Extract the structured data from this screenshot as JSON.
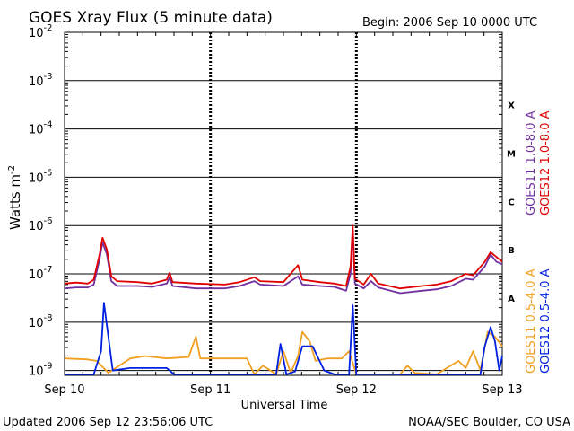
{
  "chart_data": {
    "type": "line",
    "title": "GOES Xray Flux (5 minute data)",
    "begin_label": "Begin:  2006 Sep 10 0000 UTC",
    "xlabel": "Universal Time",
    "ylabel": "Watts m",
    "ylabel_sup": "-2",
    "x_ticks": [
      "Sep 10",
      "Sep 11",
      "Sep 12",
      "Sep 13"
    ],
    "x_range_days": [
      0,
      3
    ],
    "y_scale": "log",
    "y_ticks": [
      {
        "base": "10",
        "exp": "-2"
      },
      {
        "base": "10",
        "exp": "-3"
      },
      {
        "base": "10",
        "exp": "-4"
      },
      {
        "base": "10",
        "exp": "-5"
      },
      {
        "base": "10",
        "exp": "-6"
      },
      {
        "base": "10",
        "exp": "-7"
      },
      {
        "base": "10",
        "exp": "-8"
      },
      {
        "base": "10",
        "exp": "-9"
      }
    ],
    "ylim_exp": [
      -9.1,
      -2
    ],
    "flare_classes": [
      {
        "label": "X",
        "exp": -3.5
      },
      {
        "label": "M",
        "exp": -4.5
      },
      {
        "label": "C",
        "exp": -5.5
      },
      {
        "label": "B",
        "exp": -6.5
      },
      {
        "label": "A",
        "exp": -7.5
      }
    ],
    "series": [
      {
        "name": "GOES11 1.0-8.0 A",
        "color": "#7030a0",
        "unit_days": true,
        "points": [
          [
            0,
            -7.3
          ],
          [
            0.08,
            -7.28
          ],
          [
            0.16,
            -7.28
          ],
          [
            0.2,
            -7.22
          ],
          [
            0.24,
            -6.7
          ],
          [
            0.26,
            -6.35
          ],
          [
            0.29,
            -6.6
          ],
          [
            0.32,
            -7.15
          ],
          [
            0.36,
            -7.25
          ],
          [
            0.5,
            -7.25
          ],
          [
            0.6,
            -7.27
          ],
          [
            0.7,
            -7.2
          ],
          [
            0.72,
            -7.08
          ],
          [
            0.74,
            -7.25
          ],
          [
            0.9,
            -7.3
          ],
          [
            1.1,
            -7.3
          ],
          [
            1.2,
            -7.25
          ],
          [
            1.3,
            -7.15
          ],
          [
            1.34,
            -7.22
          ],
          [
            1.5,
            -7.25
          ],
          [
            1.6,
            -7.05
          ],
          [
            1.63,
            -7.22
          ],
          [
            1.75,
            -7.25
          ],
          [
            1.85,
            -7.27
          ],
          [
            1.93,
            -7.35
          ],
          [
            1.96,
            -7.0
          ],
          [
            1.975,
            -6.1
          ],
          [
            1.99,
            -7.2
          ],
          [
            2.05,
            -7.3
          ],
          [
            2.1,
            -7.15
          ],
          [
            2.15,
            -7.28
          ],
          [
            2.3,
            -7.4
          ],
          [
            2.45,
            -7.35
          ],
          [
            2.55,
            -7.32
          ],
          [
            2.65,
            -7.25
          ],
          [
            2.75,
            -7.1
          ],
          [
            2.8,
            -7.12
          ],
          [
            2.88,
            -6.85
          ],
          [
            2.92,
            -6.6
          ],
          [
            2.96,
            -6.75
          ],
          [
            3.0,
            -6.8
          ]
        ]
      },
      {
        "name": "GOES12 1.0-8.0 A",
        "color": "#e00000",
        "unit_days": true,
        "points": [
          [
            0,
            -7.2
          ],
          [
            0.08,
            -7.18
          ],
          [
            0.16,
            -7.2
          ],
          [
            0.2,
            -7.12
          ],
          [
            0.24,
            -6.6
          ],
          [
            0.26,
            -6.25
          ],
          [
            0.29,
            -6.5
          ],
          [
            0.32,
            -7.05
          ],
          [
            0.36,
            -7.15
          ],
          [
            0.5,
            -7.17
          ],
          [
            0.6,
            -7.2
          ],
          [
            0.7,
            -7.12
          ],
          [
            0.72,
            -6.98
          ],
          [
            0.74,
            -7.17
          ],
          [
            0.9,
            -7.2
          ],
          [
            1.1,
            -7.22
          ],
          [
            1.2,
            -7.17
          ],
          [
            1.3,
            -7.07
          ],
          [
            1.34,
            -7.15
          ],
          [
            1.5,
            -7.17
          ],
          [
            1.6,
            -6.82
          ],
          [
            1.63,
            -7.12
          ],
          [
            1.75,
            -7.17
          ],
          [
            1.85,
            -7.2
          ],
          [
            1.93,
            -7.25
          ],
          [
            1.96,
            -6.85
          ],
          [
            1.975,
            -6.0
          ],
          [
            1.99,
            -7.1
          ],
          [
            2.05,
            -7.22
          ],
          [
            2.1,
            -7.0
          ],
          [
            2.15,
            -7.2
          ],
          [
            2.3,
            -7.3
          ],
          [
            2.45,
            -7.25
          ],
          [
            2.55,
            -7.22
          ],
          [
            2.65,
            -7.15
          ],
          [
            2.75,
            -7.0
          ],
          [
            2.8,
            -7.03
          ],
          [
            2.88,
            -6.75
          ],
          [
            2.92,
            -6.55
          ],
          [
            2.96,
            -6.65
          ],
          [
            3.0,
            -6.75
          ]
        ]
      },
      {
        "name": "GOES11 0.5-4.0 A",
        "color": "#f0a020",
        "unit_days": true,
        "points": [
          [
            0,
            -8.75
          ],
          [
            0.15,
            -8.77
          ],
          [
            0.22,
            -8.8
          ],
          [
            0.3,
            -9.05
          ],
          [
            0.45,
            -8.75
          ],
          [
            0.55,
            -8.7
          ],
          [
            0.7,
            -8.75
          ],
          [
            0.85,
            -8.72
          ],
          [
            0.9,
            -8.3
          ],
          [
            0.93,
            -8.75
          ],
          [
            1.1,
            -8.75
          ],
          [
            1.25,
            -8.75
          ],
          [
            1.3,
            -9.08
          ],
          [
            1.36,
            -8.9
          ],
          [
            1.45,
            -9.08
          ],
          [
            1.5,
            -8.6
          ],
          [
            1.55,
            -9.05
          ],
          [
            1.6,
            -8.7
          ],
          [
            1.63,
            -8.2
          ],
          [
            1.68,
            -8.4
          ],
          [
            1.72,
            -8.8
          ],
          [
            1.8,
            -8.75
          ],
          [
            1.9,
            -8.75
          ],
          [
            1.95,
            -8.6
          ],
          [
            2.0,
            -9.08
          ],
          [
            2.3,
            -9.08
          ],
          [
            2.35,
            -8.9
          ],
          [
            2.4,
            -9.05
          ],
          [
            2.55,
            -9.08
          ],
          [
            2.7,
            -8.8
          ],
          [
            2.75,
            -8.95
          ],
          [
            2.8,
            -8.6
          ],
          [
            2.85,
            -9.0
          ],
          [
            2.9,
            -8.2
          ],
          [
            2.95,
            -8.3
          ],
          [
            3.0,
            -8.5
          ]
        ]
      },
      {
        "name": "GOES12 0.5-4.0 A",
        "color": "#0020e0",
        "unit_days": true,
        "points": [
          [
            0,
            -9.08
          ],
          [
            0.2,
            -9.08
          ],
          [
            0.25,
            -8.6
          ],
          [
            0.27,
            -7.6
          ],
          [
            0.3,
            -8.3
          ],
          [
            0.33,
            -9.0
          ],
          [
            0.45,
            -8.95
          ],
          [
            0.7,
            -8.95
          ],
          [
            0.75,
            -9.08
          ],
          [
            1.3,
            -9.08
          ],
          [
            1.45,
            -9.08
          ],
          [
            1.48,
            -8.45
          ],
          [
            1.52,
            -9.08
          ],
          [
            1.58,
            -9.02
          ],
          [
            1.63,
            -8.5
          ],
          [
            1.7,
            -8.5
          ],
          [
            1.78,
            -9.0
          ],
          [
            1.85,
            -9.08
          ],
          [
            1.95,
            -9.08
          ],
          [
            1.975,
            -7.65
          ],
          [
            2.0,
            -9.08
          ],
          [
            2.25,
            -9.08
          ],
          [
            2.4,
            -9.08
          ],
          [
            2.6,
            -9.08
          ],
          [
            2.85,
            -9.08
          ],
          [
            2.88,
            -8.5
          ],
          [
            2.92,
            -8.1
          ],
          [
            2.95,
            -8.4
          ],
          [
            2.98,
            -9.0
          ],
          [
            3.0,
            -8.7
          ]
        ]
      }
    ]
  },
  "footer": {
    "updated": "Updated 2006 Sep 12 23:56:06 UTC",
    "source": "NOAA/SEC Boulder, CO USA"
  }
}
